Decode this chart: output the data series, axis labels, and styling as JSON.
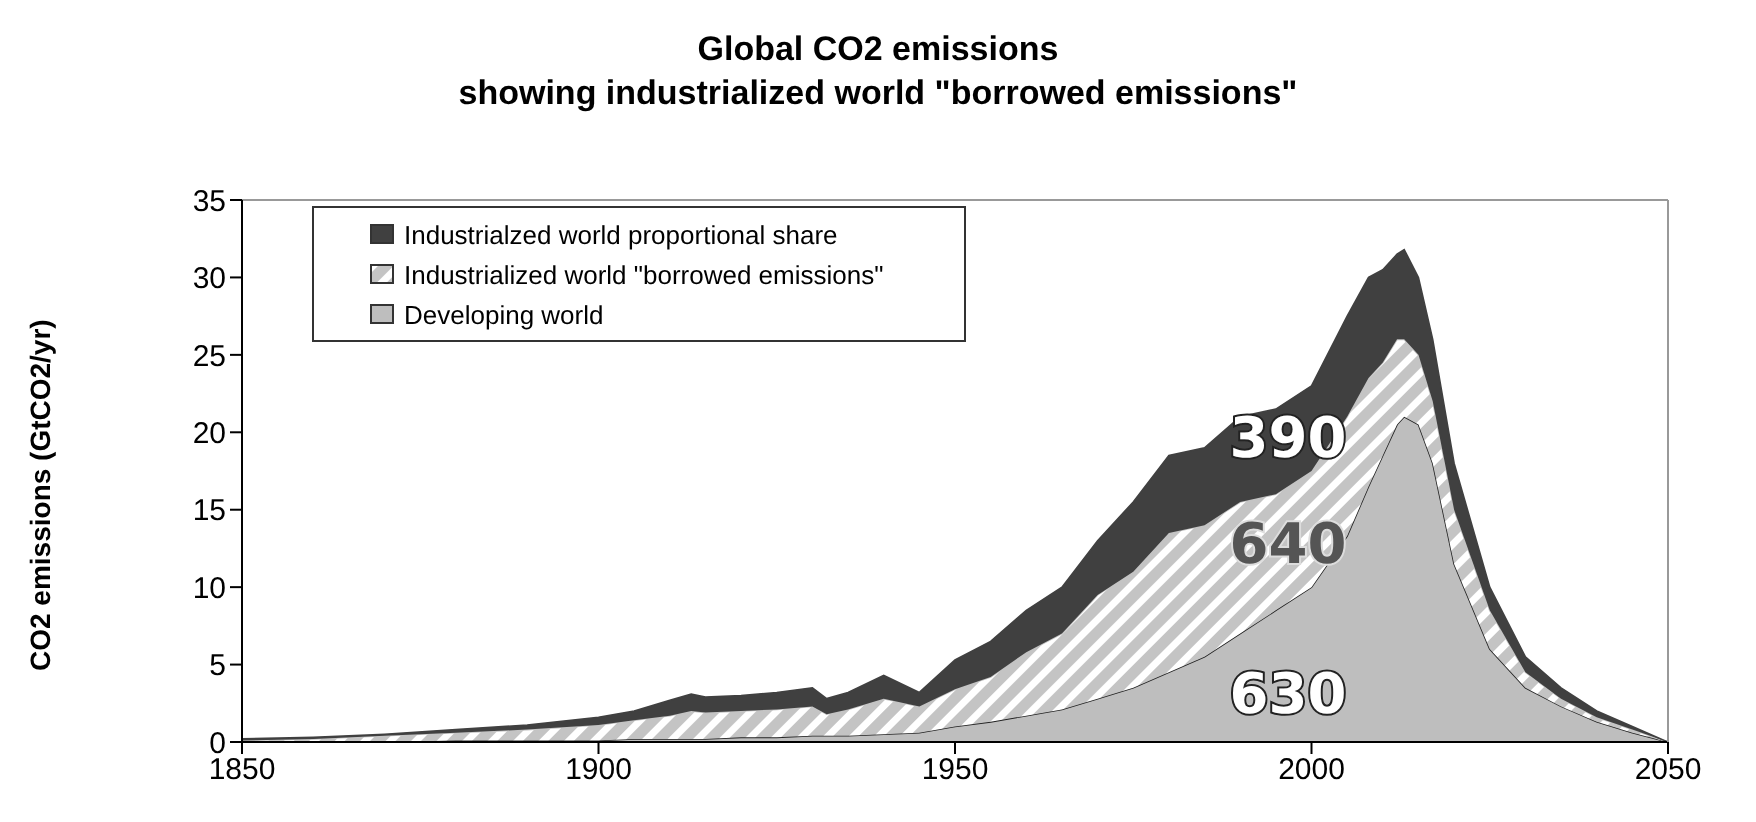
{
  "chart_data": {
    "type": "area",
    "title": "Global CO2 emissions",
    "subtitle": "showing industrialized world \"borrowed emissions\"",
    "ylabel": "CO2 emissions (GtCO2/yr)",
    "x": [
      1850,
      1860,
      1870,
      1880,
      1890,
      1900,
      1905,
      1910,
      1913,
      1915,
      1920,
      1925,
      1930,
      1932,
      1935,
      1940,
      1945,
      1950,
      1955,
      1960,
      1965,
      1970,
      1975,
      1980,
      1985,
      1990,
      1995,
      2000,
      2005,
      2008,
      2010,
      2012,
      2013,
      2015,
      2017,
      2020,
      2025,
      2030,
      2035,
      2040,
      2045,
      2050
    ],
    "stacked": true,
    "series": [
      {
        "name": "Developing world",
        "color": "#bebebe",
        "values": [
          0,
          0,
          0,
          0.1,
          0.1,
          0.1,
          0.2,
          0.2,
          0.2,
          0.2,
          0.3,
          0.3,
          0.4,
          0.4,
          0.4,
          0.5,
          0.6,
          1,
          1.3,
          1.7,
          2.1,
          2.8,
          3.5,
          4.5,
          5.5,
          7,
          8.5,
          10,
          13.3,
          16.5,
          18.5,
          20.5,
          21,
          20.5,
          18,
          11.5,
          6,
          3.5,
          2.3,
          1.3,
          0.6,
          0
        ]
      },
      {
        "name": "Industrialized world \"borrowed emissions\"",
        "color": "#c4c4c4",
        "values": [
          0.1,
          0.2,
          0.4,
          0.5,
          0.7,
          1,
          1.2,
          1.5,
          1.8,
          1.7,
          1.7,
          1.8,
          1.9,
          1.4,
          1.7,
          2.3,
          1.7,
          2.4,
          2.9,
          4.1,
          4.9,
          6.7,
          7.5,
          9,
          8.5,
          8.5,
          7.5,
          7.5,
          7.7,
          7,
          6,
          5.5,
          5,
          4.5,
          4,
          3.5,
          2.5,
          1,
          0.5,
          0.3,
          0.2,
          0
        ]
      },
      {
        "name": "Industrialzed world proportional share",
        "color": "#404040",
        "values": [
          0.1,
          0.1,
          0.1,
          0.2,
          0.3,
          0.5,
          0.6,
          1,
          1.1,
          1,
          1,
          1.1,
          1.2,
          1,
          1.1,
          1.5,
          0.9,
          1.9,
          2.3,
          2.7,
          3,
          3.5,
          4.5,
          5,
          5,
          5.5,
          5.5,
          5.5,
          6.5,
          6.5,
          6,
          5.5,
          5.8,
          5,
          4,
          3,
          1.5,
          1,
          0.7,
          0.4,
          0.2,
          0
        ]
      }
    ],
    "xlim": [
      1850,
      2050
    ],
    "xticks": [
      1850,
      1900,
      1950,
      2000,
      2050
    ],
    "ylim": [
      0,
      35
    ],
    "yticks": [
      0,
      5,
      10,
      15,
      20,
      25,
      30,
      35
    ],
    "legend": "top left",
    "grid": false,
    "annotations": [
      "390",
      "640",
      "630"
    ]
  }
}
